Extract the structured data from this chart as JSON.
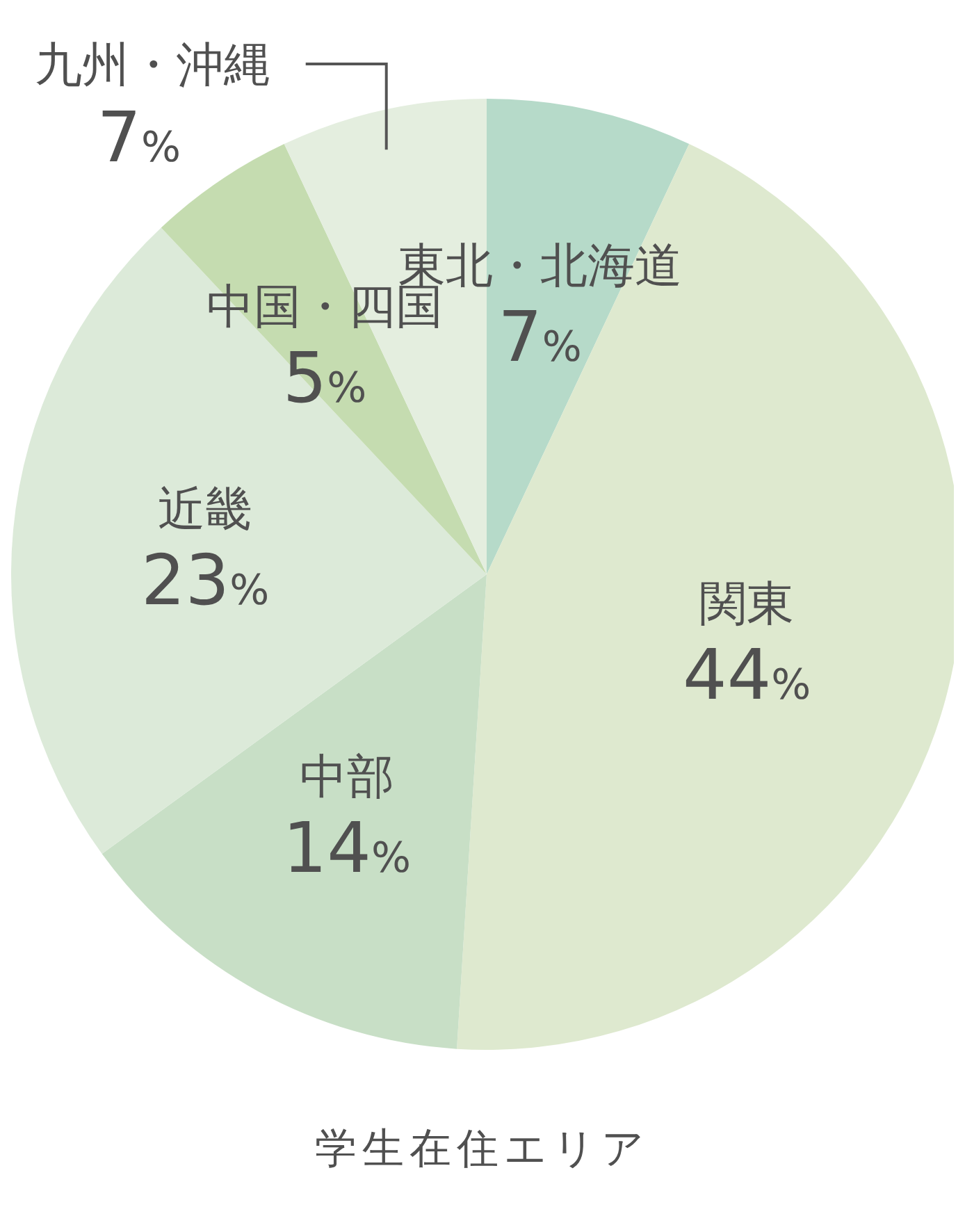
{
  "chart_data": {
    "type": "pie",
    "title": "学生在住エリア",
    "categories": [
      "東北・北海道",
      "関東",
      "中部",
      "近畿",
      "中国・四国",
      "九州・沖縄"
    ],
    "values": [
      7,
      44,
      14,
      23,
      5,
      7
    ],
    "value_labels": [
      "7%",
      "44%",
      "14%",
      "23%",
      "5%",
      "7%"
    ],
    "colors": [
      "#b6dac9",
      "#dee9cf",
      "#c8dfc6",
      "#dcead9",
      "#c5dcb0",
      "#e4eedf"
    ],
    "legend": false
  }
}
